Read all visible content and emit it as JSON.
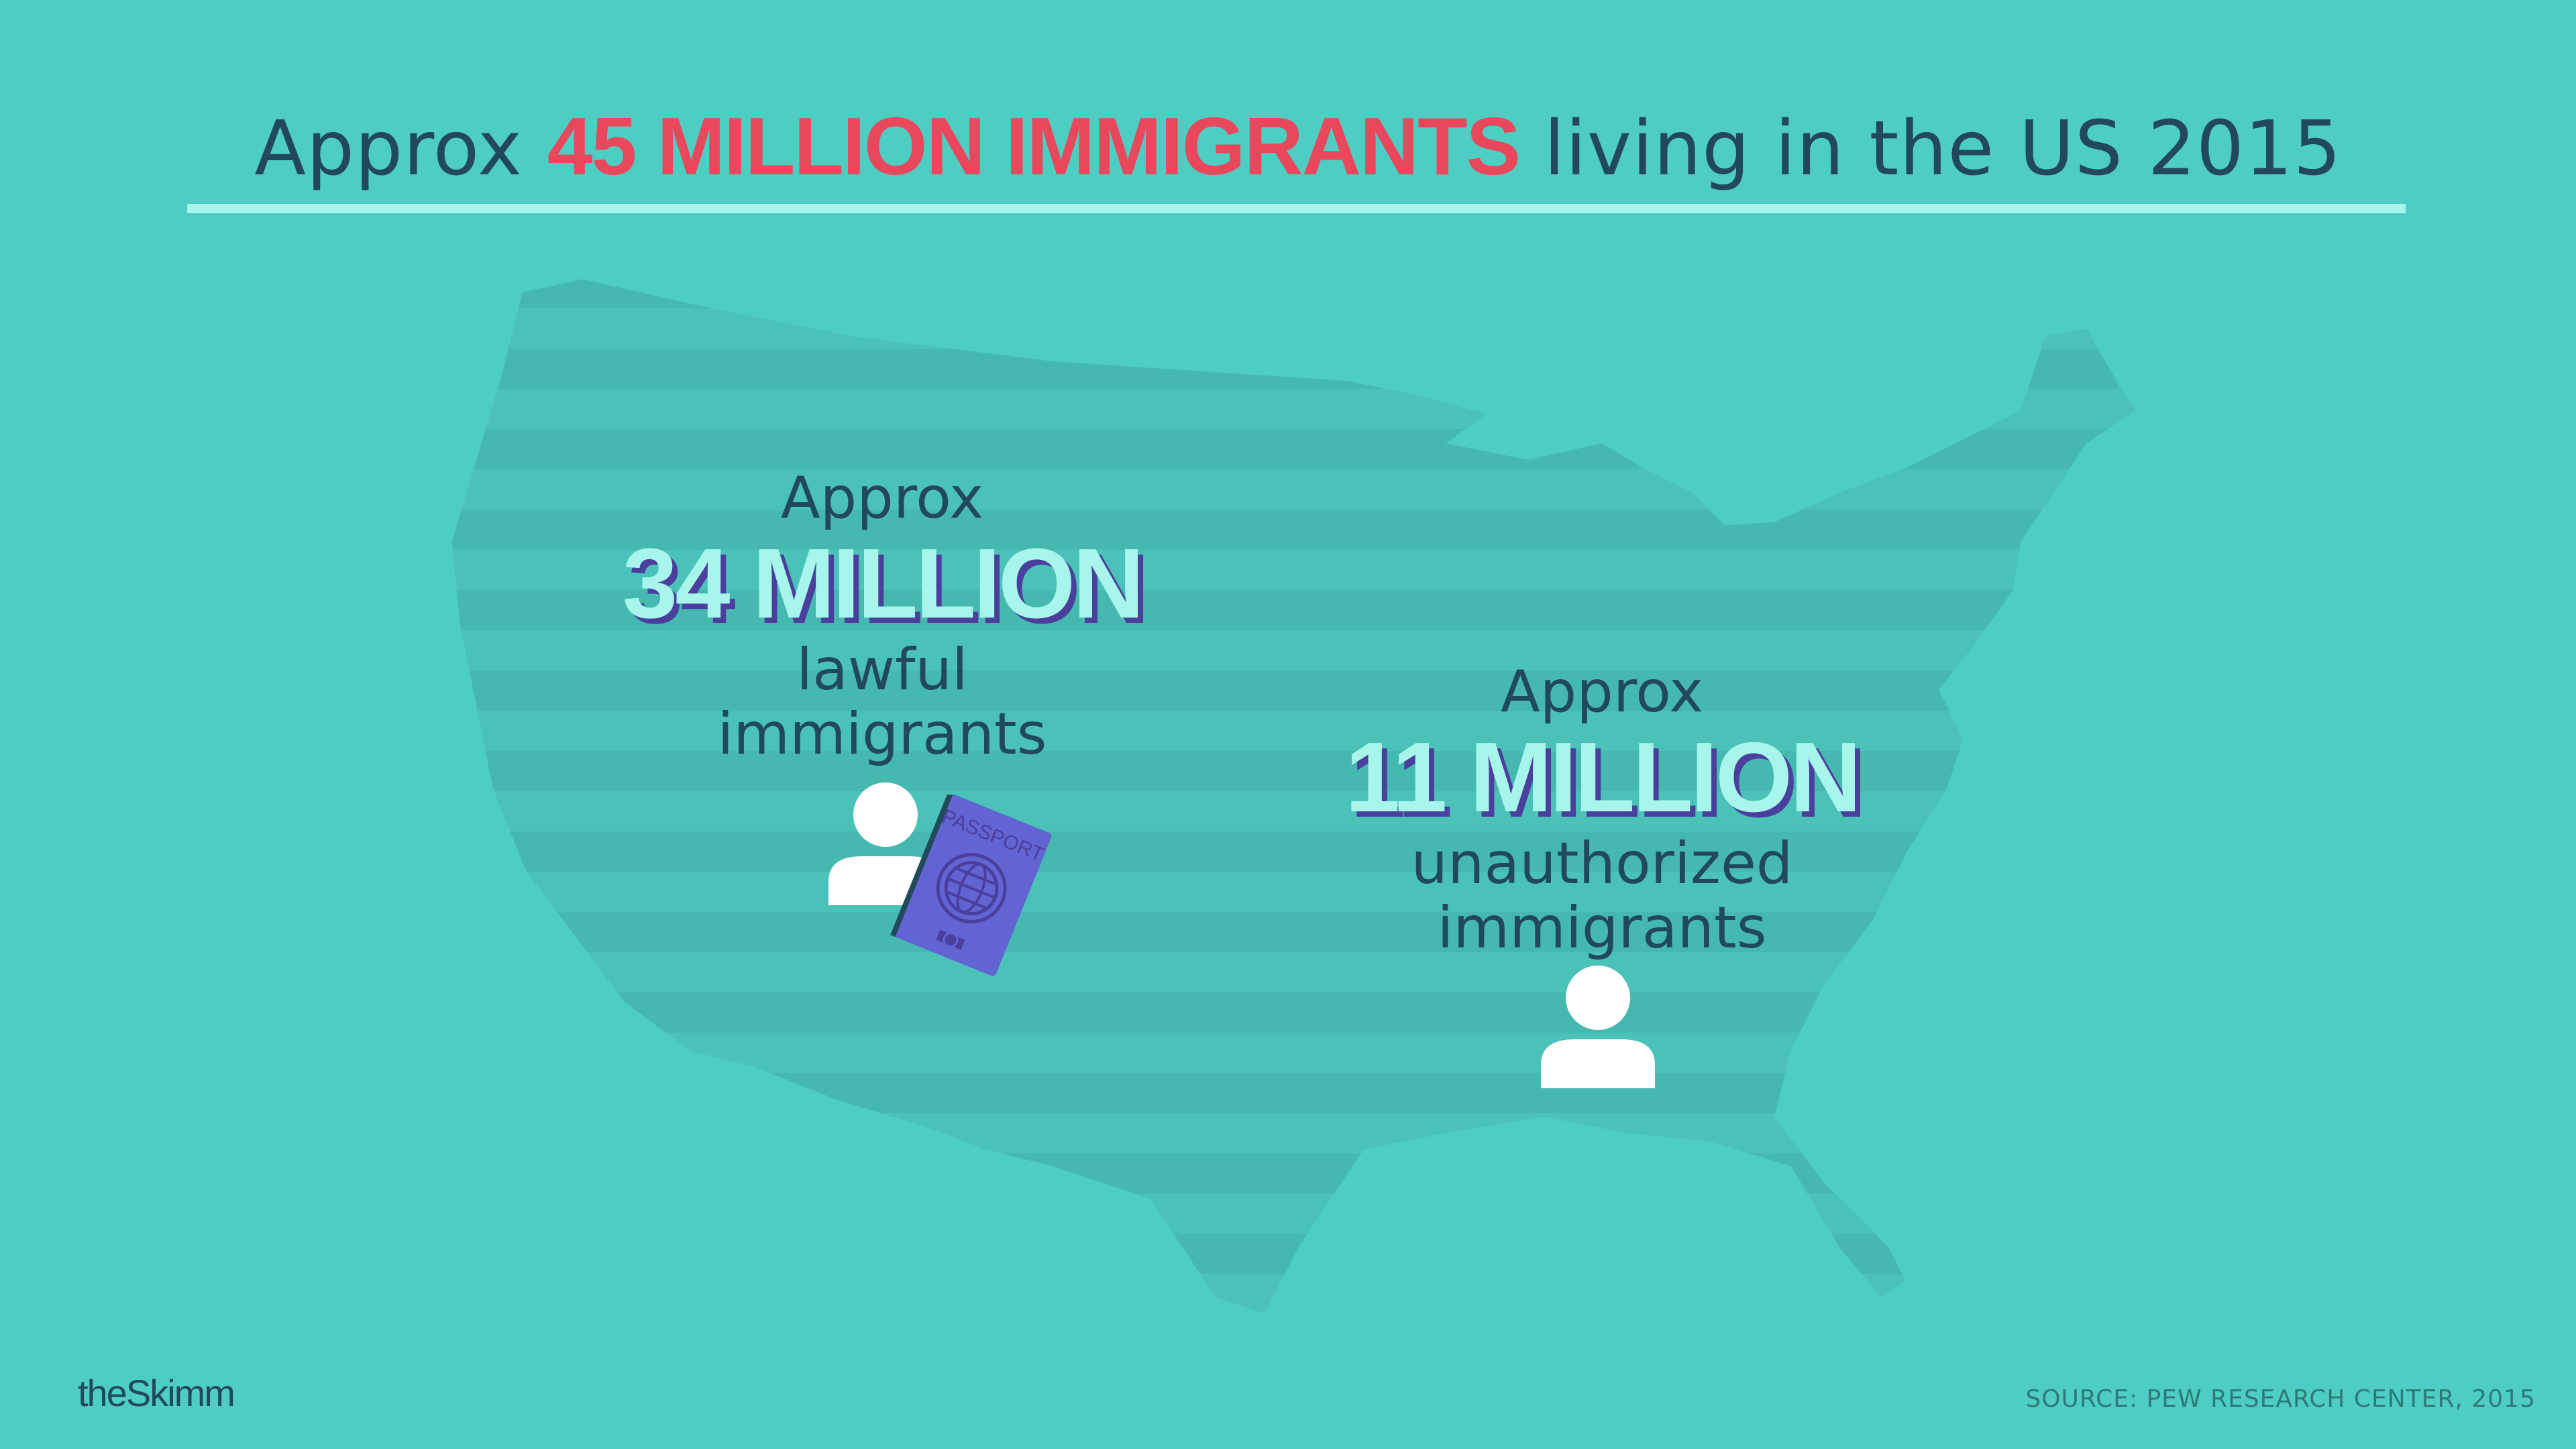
{
  "title": {
    "prefix": "Approx",
    "highlight": "45 MILLION IMMIGRANTS",
    "suffix": "living in the US 2015"
  },
  "lawful": {
    "approx": "Approx",
    "amount": "34 MILLION",
    "line1": "lawful",
    "line2": "immigrants",
    "icon": "person-icon",
    "badge_icon": "passport-icon",
    "passport_label": "PASSPORT"
  },
  "unauthorized": {
    "approx": "Approx",
    "amount": "11 MILLION",
    "line1": "unauthorized",
    "line2": "immigrants",
    "icon": "person-icon"
  },
  "logo": "theSkimm",
  "source": "SOURCE: PEW RESEARCH CENTER, 2015",
  "colors": {
    "background": "#4ecdc3",
    "highlight": "#e8475c",
    "text": "#22495a",
    "amount": "#a8f5ec",
    "passport": "#6264d4"
  }
}
